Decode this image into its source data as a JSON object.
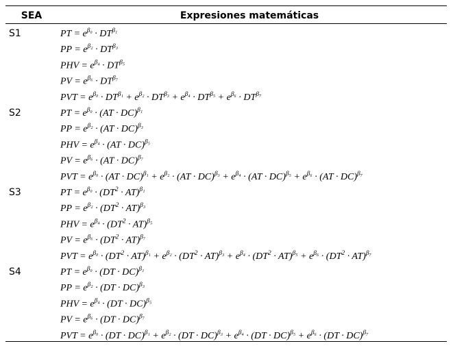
{
  "table": {
    "header": [
      "SEA",
      "Expresiones matemáticas"
    ],
    "rows": [
      {
        "label": "S1",
        "formulas": [
          [
            "PT = e",
            "β₀",
            " · DT",
            "β₁"
          ],
          [
            "PP = e",
            "β₂",
            " · DT",
            "β₃"
          ],
          [
            "PHV = e",
            "β₄",
            " · DT",
            "β₅"
          ],
          [
            "PV = e",
            "β₆",
            " · DT",
            "β₇"
          ],
          [
            "PVT = e",
            "β₀",
            " · DT",
            "β₁",
            " + e",
            "β₂",
            " · DT",
            "β₃",
            " + e",
            "β₄",
            " · DT",
            "β₅",
            " + e",
            "β₆",
            " · DT",
            "β₇"
          ]
        ]
      },
      {
        "label": "S2",
        "formulas": [
          [
            "PT = e",
            "β₀",
            " · (AT · DC)",
            "β₁"
          ],
          [
            "PP = e",
            "β₂",
            " · (AT · DC)",
            "β₃"
          ],
          [
            "PHV = e",
            "β₄",
            " · (AT · DC)",
            "β₅"
          ],
          [
            "PV = e",
            "β₆",
            " · (AT · DC)",
            "β₇"
          ],
          [
            "PVT = e",
            "β₀",
            " · (AT · DC)",
            "β₁",
            " + e",
            "β₂",
            " · (AT · DC)",
            "β₃",
            " + e",
            "β₄",
            " · (AT · DC)",
            "β₅",
            " + e",
            "β₆",
            " · (AT · DC)",
            "β₇"
          ]
        ]
      },
      {
        "label": "S3",
        "formulas": [
          [
            "PT = e",
            "β₀",
            " · (DT",
            "2",
            " · AT)",
            "β₁"
          ],
          [
            "PP = e",
            "β₂",
            " · (DT",
            "2",
            " · AT)",
            "β₃"
          ],
          [
            "PHV = e",
            "β₄",
            " · (DT",
            "2",
            " · AT)",
            "β₅"
          ],
          [
            "PV = e",
            "β₆",
            " · (DT",
            "2",
            " · AT)",
            "β₇"
          ],
          [
            "PVT = e",
            "β₀",
            " · (DT",
            "2",
            " · AT)",
            "β₁",
            " + e",
            "β₂",
            " · (DT",
            "2",
            " · AT)",
            "β₃",
            " + e",
            "β₄",
            " · (DT",
            "2",
            " · AT)",
            "β₅",
            " + e",
            "β₆",
            " · (DT",
            "2",
            " · AT)",
            "β₇"
          ]
        ]
      },
      {
        "label": "S4",
        "formulas": [
          [
            "PT = e",
            "β₀",
            " · (DT · DC)",
            "β₁"
          ],
          [
            "PP = e",
            "β₂",
            " · (DT · DC)",
            "β₃"
          ],
          [
            "PHV = e",
            "β₄",
            " · (DT · DC)",
            "β₅"
          ],
          [
            "PV = e",
            "β₆",
            " · (DT · DC)",
            "β₇"
          ],
          [
            "PVT = e",
            "β₀",
            " · (DT · DC)",
            "β₁",
            " + e",
            "β₂",
            " · (DT · DC)",
            "β₃",
            " + e",
            "β₄",
            " · (DT · DC)",
            "β₅",
            " + e",
            "β₆",
            " · (DT · DC)",
            "β₇"
          ]
        ]
      }
    ]
  }
}
